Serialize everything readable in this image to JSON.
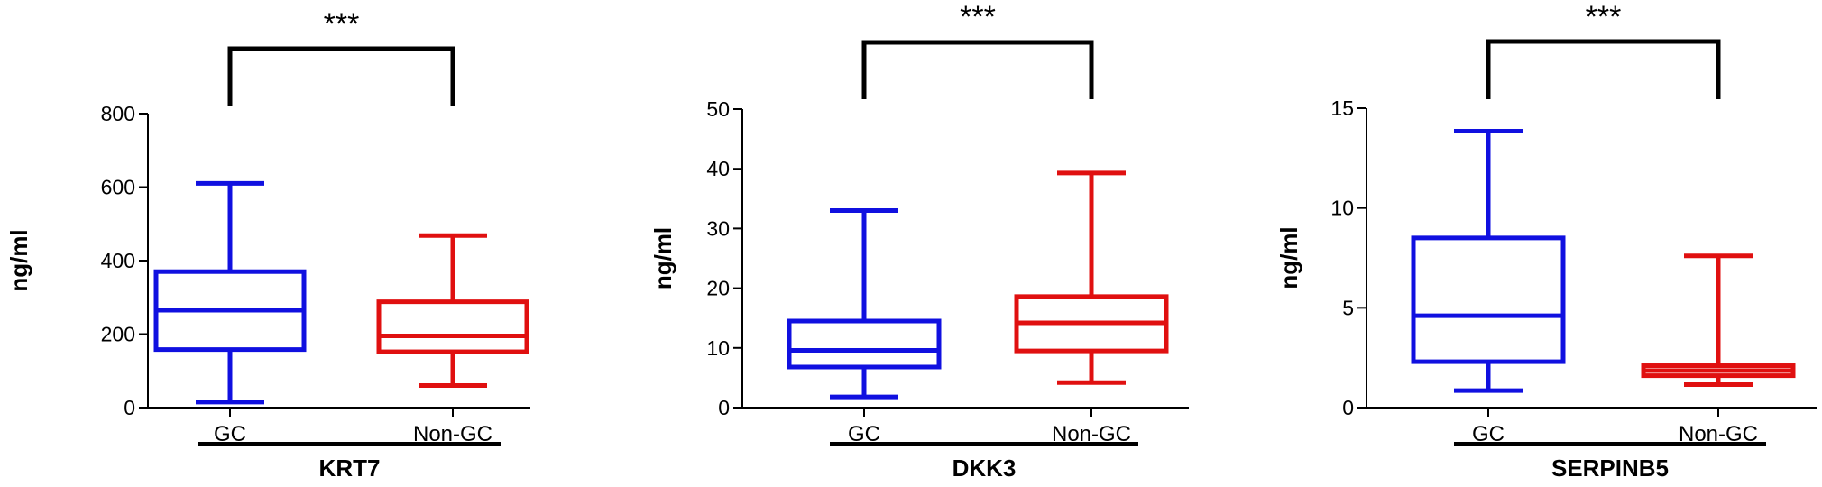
{
  "chart_data": [
    {
      "type": "boxplot",
      "group_label": "KRT7",
      "ylabel": "ng/ml",
      "ylim": [
        0,
        800
      ],
      "yticks": [
        0,
        200,
        400,
        600,
        800
      ],
      "significance": "***",
      "grid": false,
      "categories": [
        "GC",
        "Non-GC"
      ],
      "series": [
        {
          "category": "GC",
          "color": "#1010e0",
          "min": 15,
          "q1": 158,
          "median": 265,
          "q3": 370,
          "max": 610
        },
        {
          "category": "Non-GC",
          "color": "#e01010",
          "min": 60,
          "q1": 152,
          "median": 195,
          "q3": 288,
          "max": 468
        }
      ]
    },
    {
      "type": "boxplot",
      "group_label": "DKK3",
      "ylabel": "ng/ml",
      "ylim": [
        0,
        50
      ],
      "yticks": [
        0,
        10,
        20,
        30,
        40,
        50
      ],
      "significance": "***",
      "grid": false,
      "categories": [
        "GC",
        "Non-GC"
      ],
      "series": [
        {
          "category": "GC",
          "color": "#1010e0",
          "min": 1.8,
          "q1": 6.8,
          "median": 9.6,
          "q3": 14.5,
          "max": 33
        },
        {
          "category": "Non-GC",
          "color": "#e01010",
          "min": 4.2,
          "q1": 9.5,
          "median": 14.2,
          "q3": 18.6,
          "max": 39.3
        }
      ]
    },
    {
      "type": "boxplot",
      "group_label": "SERPINB5",
      "ylabel": "ng/ml",
      "ylim": [
        0,
        15
      ],
      "yticks": [
        0,
        5,
        10,
        15
      ],
      "significance": "***",
      "grid": false,
      "categories": [
        "GC",
        "Non-GC"
      ],
      "series": [
        {
          "category": "GC",
          "color": "#1010e0",
          "min": 0.85,
          "q1": 2.3,
          "median": 4.6,
          "q3": 8.5,
          "max": 13.85
        },
        {
          "category": "Non-GC",
          "color": "#e01010",
          "min": 1.15,
          "q1": 1.6,
          "median": 1.85,
          "q3": 2.1,
          "max": 7.6
        }
      ]
    }
  ]
}
